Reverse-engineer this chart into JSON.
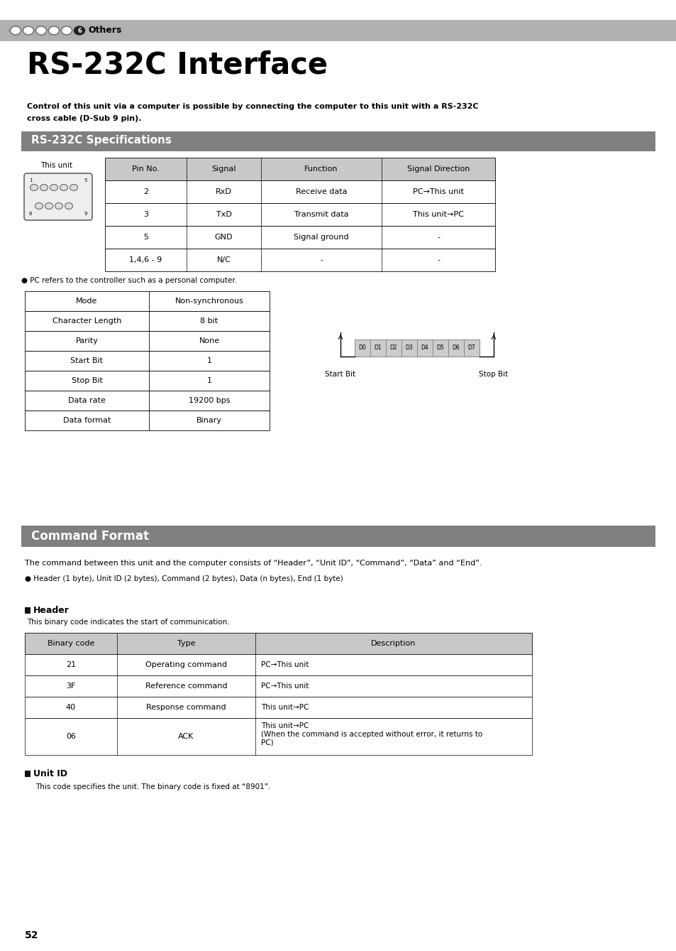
{
  "bg_color": "#ffffff",
  "header_bar_color": "#b0b0b0",
  "section_bar_color": "#808080",
  "table_header_color": "#c8c8c8",
  "page_title": "RS-232C Interface",
  "intro_text1": "Control of this unit via a computer is possible by connecting the computer to this unit with a RS-232C",
  "intro_text2": "cross cable (D-Sub 9 pin).",
  "spec_section_title": "RS-232C Specifications",
  "pin_table_headers": [
    "Pin No.",
    "Signal",
    "Function",
    "Signal Direction"
  ],
  "pin_table_rows": [
    [
      "2",
      "RxD",
      "Receive data",
      "PC→This unit"
    ],
    [
      "3",
      "TxD",
      "Transmit data",
      "This unit→PC"
    ],
    [
      "5",
      "GND",
      "Signal ground",
      "-"
    ],
    [
      "1,4,6 - 9",
      "N/C",
      "-",
      "-"
    ]
  ],
  "pc_note": "PC refers to the controller such as a personal computer.",
  "mode_table_rows": [
    [
      "Mode",
      "Non-synchronous"
    ],
    [
      "Character Length",
      "8 bit"
    ],
    [
      "Parity",
      "None"
    ],
    [
      "Start Bit",
      "1"
    ],
    [
      "Stop Bit",
      "1"
    ],
    [
      "Data rate",
      "19200 bps"
    ],
    [
      "Data format",
      "Binary"
    ]
  ],
  "bit_labels": [
    "D0",
    "D1",
    "D2",
    "D3",
    "D4",
    "D5",
    "D6",
    "D7"
  ],
  "command_section_title": "Command Format",
  "command_intro": "The command between this unit and the computer consists of “Header”, “Unit ID”, “Command”, “Data” and “End”.",
  "command_bullet": "Header (1 byte), Unit ID (2 bytes), Command (2 bytes), Data (n bytes), End (1 byte)",
  "header_subtitle": "Header",
  "header_note": "This binary code indicates the start of communication.",
  "header_table_headers": [
    "Binary code",
    "Type",
    "Description"
  ],
  "header_table_rows": [
    [
      "21",
      "Operating command",
      "PC→This unit"
    ],
    [
      "3F",
      "Reference command",
      "PC→This unit"
    ],
    [
      "40",
      "Response command",
      "This unit→PC"
    ],
    [
      "06",
      "ACK",
      "This unit→PC\n(When the command is accepted without error, it returns to\nPC)"
    ]
  ],
  "unit_id_subtitle": "Unit ID",
  "unit_id_text": "This code specifies the unit. The binary code is fixed at “8901”.",
  "page_number": "52"
}
